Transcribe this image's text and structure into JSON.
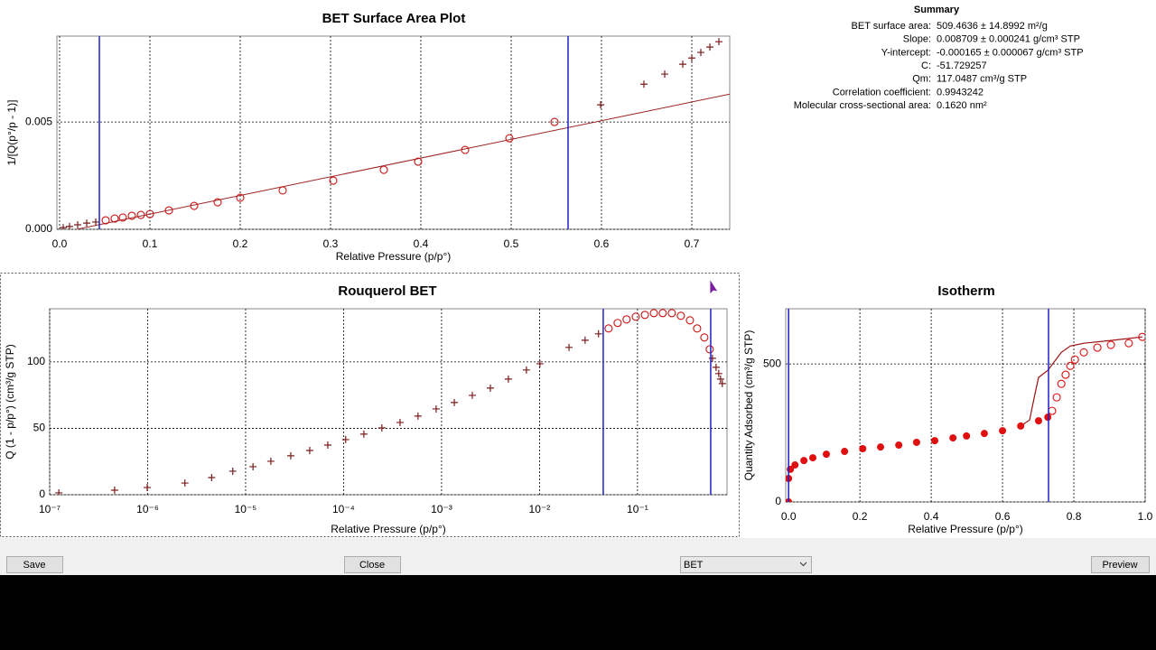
{
  "chart_data": [
    {
      "type": "scatter",
      "title": "BET Surface Area Plot",
      "x_label": "Relative Pressure (p/p°)",
      "y_label": "1/[Q(p°/p - 1)]",
      "xlim": [
        -0.003,
        0.742
      ],
      "ylim": [
        0,
        0.009
      ],
      "xticks": [
        {
          "value": 0,
          "label": "0.0"
        },
        0.1,
        0.2,
        0.3,
        0.4,
        0.5,
        0.6,
        0.7
      ],
      "yticks": [
        {
          "value": 0,
          "label": "0.000"
        },
        {
          "value": 0.005,
          "label": "0.005"
        }
      ],
      "grid": true,
      "vlines": [
        0.044,
        0.563
      ],
      "vline_color": "#2020c8",
      "fit": {
        "slope": 0.008709,
        "intercept": -0.000165,
        "color": "#9b2323"
      },
      "series": [
        {
          "marker": "circle",
          "color": "#c81414",
          "x": [
            0.051,
            0.061,
            0.07,
            0.08,
            0.09,
            0.1,
            0.121,
            0.149,
            0.175,
            0.2,
            0.247,
            0.303,
            0.359,
            0.397,
            0.449,
            0.498,
            0.548
          ],
          "values": [
            0.00042,
            0.0005,
            0.00055,
            0.00063,
            0.00067,
            0.00071,
            0.00088,
            0.00109,
            0.00126,
            0.00147,
            0.00181,
            0.00227,
            0.00277,
            0.00315,
            0.0037,
            0.00424,
            0.005
          ]
        },
        {
          "marker": "plus",
          "color": "#7a1c1c",
          "x": [
            0.004,
            0.011,
            0.02,
            0.03,
            0.04,
            0.599,
            0.647,
            0.67,
            0.69,
            0.7,
            0.71,
            0.72,
            0.73
          ],
          "values": [
            8e-05,
            0.00013,
            0.00021,
            0.00029,
            0.00034,
            0.0058,
            0.00676,
            0.00723,
            0.00769,
            0.00798,
            0.00824,
            0.00849,
            0.00874
          ]
        }
      ]
    },
    {
      "type": "scatter",
      "title": "Rouquerol BET",
      "x_label": "Relative Pressure (p/p°)",
      "y_label": "Q (1 - p/p°) (cm³/g STP)",
      "xlog": true,
      "xlim": [
        1e-07,
        0.82
      ],
      "ylim": [
        0,
        140
      ],
      "xticks": [
        {
          "value": 1e-07,
          "label": "10⁻⁷"
        },
        {
          "value": 1e-06,
          "label": "10⁻⁶"
        },
        {
          "value": 1e-05,
          "label": "10⁻⁵"
        },
        {
          "value": 0.0001,
          "label": "10⁻⁴"
        },
        {
          "value": 0.001,
          "label": "10⁻³"
        },
        {
          "value": 0.01,
          "label": "10⁻²"
        },
        {
          "value": 0.1,
          "label": "10⁻¹"
        }
      ],
      "yticks": [
        0,
        50,
        100
      ],
      "grid": true,
      "vlines": [
        0.0447,
        0.559
      ],
      "vline_color": "#2020c8",
      "series": [
        {
          "marker": "plus",
          "color": "#7a1c1c",
          "x": [
            1.24e-07,
            4.6e-07,
            9.9e-07,
            2.4e-06,
            4.5e-06,
            7.4e-06,
            1.19e-05,
            1.81e-05,
            2.89e-05,
            4.51e-05,
            6.9e-05,
            0.000105,
            0.000161,
            0.000246,
            0.000377,
            0.000575,
            0.00088,
            0.00135,
            0.00206,
            0.00315,
            0.00481,
            0.00735,
            0.0101,
            0.02,
            0.0292,
            0.04,
            0.582,
            0.634,
            0.675,
            0.704,
            0.734
          ],
          "values": [
            1.4,
            3.4,
            5.4,
            8.8,
            12.9,
            17.7,
            21.1,
            25.2,
            29.3,
            33.3,
            37.4,
            41.5,
            45.6,
            50.3,
            54.4,
            59.2,
            64.6,
            69.4,
            74.8,
            80.3,
            87.1,
            93.9,
            98.6,
            110.9,
            116.3,
            121.1,
            102.7,
            95.9,
            91.2,
            87.1,
            83.7
          ]
        },
        {
          "marker": "circle",
          "color": "#c81414",
          "x": [
            0.0507,
            0.0627,
            0.0774,
            0.096,
            0.119,
            0.147,
            0.181,
            0.224,
            0.277,
            0.343,
            0.406,
            0.481,
            0.546
          ],
          "values": [
            125.2,
            129.3,
            132.0,
            134.0,
            135.4,
            136.7,
            136.7,
            136.7,
            134.7,
            131.3,
            125.2,
            118.4,
            109.5
          ]
        }
      ]
    },
    {
      "type": "scatter",
      "title": "Isotherm",
      "x_label": "Relative Pressure (p/p°)",
      "y_label": "Quantity Adsorbed (cm³/g STP)",
      "xlim": [
        -0.008,
        1.0
      ],
      "ylim": [
        0,
        700
      ],
      "xticks": [
        {
          "value": 0,
          "label": "0.0"
        },
        0.2,
        0.4,
        0.6,
        0.8,
        {
          "value": 1,
          "label": "1.0"
        }
      ],
      "yticks": [
        0,
        500
      ],
      "grid": true,
      "vlines": [
        0.0,
        0.729
      ],
      "vline_color": "#2020c8",
      "series": [
        {
          "marker": "line",
          "color": "#9b1010",
          "x": [
            0.992,
            0.904,
            0.828,
            0.79,
            0.765,
            0.727,
            0.701,
            0.689,
            0.676,
            0.651
          ],
          "values": [
            598,
            585,
            575,
            565,
            542,
            477,
            451,
            379,
            297,
            275
          ]
        },
        {
          "marker": "filled-circle",
          "color": "#e01010",
          "x": [
            0,
            0,
            0.005,
            0.018,
            0.043,
            0.068,
            0.106,
            0.157,
            0.208,
            0.258,
            0.309,
            0.359,
            0.41,
            0.461,
            0.499,
            0.549,
            0.6,
            0.651,
            0.701,
            0.727
          ],
          "values": [
            0,
            85,
            118,
            134,
            150,
            160,
            173,
            183,
            193,
            199,
            206,
            216,
            222,
            232,
            239,
            248,
            258,
            275,
            294,
            307
          ]
        },
        {
          "marker": "circle",
          "color": "#e01010",
          "x": [
            0.739,
            0.752,
            0.765,
            0.777,
            0.79,
            0.803,
            0.828,
            0.866,
            0.904,
            0.954,
            0.992
          ],
          "values": [
            330,
            379,
            428,
            461,
            493,
            516,
            542,
            559,
            569,
            575,
            598
          ]
        }
      ]
    }
  ],
  "summary": {
    "title": "Summary",
    "rows": [
      {
        "label": "BET surface area:",
        "value": "509.4636 ± 14.8992 m²/g"
      },
      {
        "label": "Slope:",
        "value": "0.008709 ± 0.000241 g/cm³ STP"
      },
      {
        "label": "Y-intercept:",
        "value": "-0.000165 ± 0.000067 g/cm³ STP"
      },
      {
        "label": "C:",
        "value": "-51.729257"
      },
      {
        "label": "Qm:",
        "value": "117.0487 cm³/g STP"
      },
      {
        "label": "Correlation coefficient:",
        "value": "0.9943242"
      },
      {
        "label": "Molecular cross-sectional area:",
        "value": "0.1620 nm²"
      }
    ]
  },
  "buttons": {
    "save": "Save",
    "close": "Close",
    "preview": "Preview"
  },
  "method_select": "BET"
}
